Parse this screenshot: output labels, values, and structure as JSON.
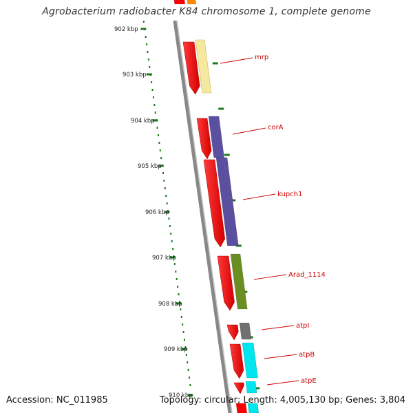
{
  "title": "Agrobacterium radiobacter K84 chromosome 1, complete genome",
  "accession": "Accession: NC_011985",
  "summary": "Topology: circular; Length: 4,005,130 bp; Genes: 3,804",
  "scale_ticks": [
    "902 kbp",
    "903 kbp",
    "904 kbp",
    "905 kbp",
    "906 kbp",
    "907 kbp",
    "908 kbp",
    "909 kbp",
    "910 kbp"
  ],
  "gene_labels": [
    "mrp",
    "corA",
    "kupch1",
    "Arad_1114",
    "atpI",
    "atpB",
    "atpE"
  ],
  "colors": {
    "cds": "#ff0000",
    "backbone": "#888888",
    "tick": "#1e7a1e",
    "label": "#cc0000",
    "mrp_feature": "#f5e9a0",
    "corA_feature": "#5b4fa0",
    "kupch1_feature": "#5b4fa0",
    "arad_feature": "#6b8e23",
    "atpI_feature": "#707070",
    "atpB_feature": "#00e5ee",
    "atpE_feature": "#00e5ee",
    "top_feature": "#ff8c00"
  }
}
